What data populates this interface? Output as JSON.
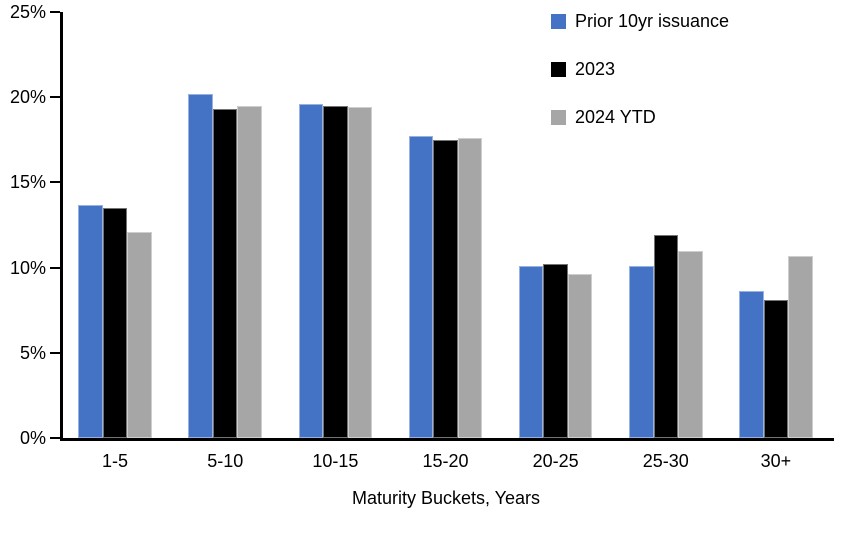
{
  "chart_data": {
    "type": "bar",
    "title": "",
    "categories": [
      "1-5",
      "5-10",
      "10-15",
      "15-20",
      "20-25",
      "25-30",
      "30+"
    ],
    "series": [
      {
        "name": "Prior 10yr issuance",
        "color": "#4472C4",
        "values": [
          13.7,
          20.2,
          19.6,
          17.7,
          10.1,
          10.1,
          8.6
        ]
      },
      {
        "name": "2023",
        "color": "#000000",
        "values": [
          13.5,
          19.3,
          19.5,
          17.5,
          10.2,
          11.9,
          8.1
        ]
      },
      {
        "name": "2024 YTD",
        "color": "#A6A6A6",
        "values": [
          12.1,
          19.5,
          19.4,
          17.6,
          9.6,
          11.0,
          10.7
        ]
      }
    ],
    "xlabel": "Maturity Buckets, Years",
    "ylabel": "",
    "ylim": [
      0,
      25
    ],
    "ytick_step": 5,
    "ytick_labels": [
      "0%",
      "5%",
      "10%",
      "15%",
      "20%",
      "25%"
    ],
    "grid": false,
    "legend_position": "top-right",
    "axis_color": "#000000"
  }
}
